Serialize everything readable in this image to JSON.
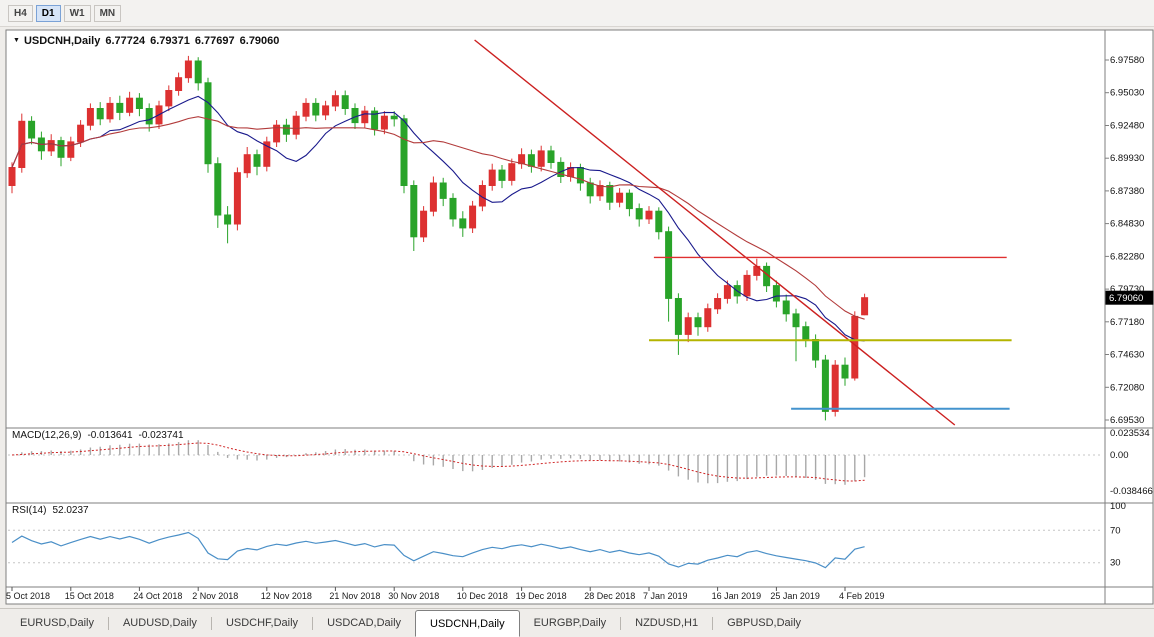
{
  "toolbar": {
    "timeframes": [
      {
        "label": "H4",
        "active": false
      },
      {
        "label": "D1",
        "active": true
      },
      {
        "label": "W1",
        "active": false
      },
      {
        "label": "MN",
        "active": false
      }
    ]
  },
  "chart": {
    "collapse_marker": "▼",
    "symbol_label": "USDCNH,Daily",
    "ohlc": {
      "open": "6.77724",
      "high": "6.79371",
      "low": "6.77697",
      "close": "6.79060"
    }
  },
  "chart_data": {
    "type": "candlestick",
    "symbol": "USDCNH",
    "timeframe": "Daily",
    "current_price": "6.79060",
    "grid": false,
    "colors": {
      "bull": "#dd3131",
      "bear": "#29a329"
    },
    "price_axis": {
      "labels": [
        "6.97580",
        "6.95030",
        "6.92480",
        "6.89930",
        "6.87380",
        "6.84830",
        "6.82280",
        "6.79730",
        "6.77180",
        "6.74630",
        "6.72080",
        "6.69530"
      ],
      "ylim": [
        6.6899,
        6.9976
      ]
    },
    "x_axis": {
      "labels": [
        "5 Oct 2018",
        "15 Oct 2018",
        "24 Oct 2018",
        "2 Nov 2018",
        "12 Nov 2018",
        "21 Nov 2018",
        "30 Nov 2018",
        "10 Dec 2018",
        "19 Dec 2018",
        "28 Dec 2018",
        "7 Jan 2019",
        "16 Jan 2019",
        "25 Jan 2019",
        "4 Feb 2019"
      ],
      "bars": [
        0,
        6,
        13,
        19,
        26,
        33,
        39,
        46,
        52,
        59,
        65,
        72,
        78,
        85
      ]
    },
    "candles": [
      [
        6.878,
        6.896,
        6.872,
        6.892
      ],
      [
        6.892,
        6.934,
        6.888,
        6.928
      ],
      [
        6.928,
        6.932,
        6.91,
        6.915
      ],
      [
        6.915,
        6.92,
        6.898,
        6.905
      ],
      [
        6.905,
        6.918,
        6.901,
        6.913
      ],
      [
        6.913,
        6.916,
        6.893,
        6.9
      ],
      [
        6.9,
        6.916,
        6.897,
        6.912
      ],
      [
        6.912,
        6.929,
        6.908,
        6.925
      ],
      [
        6.925,
        6.942,
        6.921,
        6.938
      ],
      [
        6.938,
        6.943,
        6.925,
        6.93
      ],
      [
        6.93,
        6.947,
        6.927,
        6.942
      ],
      [
        6.942,
        6.948,
        6.929,
        6.935
      ],
      [
        6.935,
        6.951,
        6.932,
        6.946
      ],
      [
        6.946,
        6.95,
        6.932,
        6.938
      ],
      [
        6.938,
        6.942,
        6.92,
        6.926
      ],
      [
        6.926,
        6.944,
        6.922,
        6.94
      ],
      [
        6.94,
        6.956,
        6.936,
        6.952
      ],
      [
        6.952,
        6.966,
        6.948,
        6.962
      ],
      [
        6.962,
        6.979,
        6.958,
        6.975
      ],
      [
        6.975,
        6.978,
        6.952,
        6.958
      ],
      [
        6.958,
        6.962,
        6.888,
        6.895
      ],
      [
        6.895,
        6.9,
        6.845,
        6.855
      ],
      [
        6.855,
        6.862,
        6.833,
        6.848
      ],
      [
        6.848,
        6.892,
        6.843,
        6.888
      ],
      [
        6.888,
        6.908,
        6.884,
        6.902
      ],
      [
        6.902,
        6.906,
        6.886,
        6.893
      ],
      [
        6.893,
        6.916,
        6.889,
        6.912
      ],
      [
        6.912,
        6.929,
        6.908,
        6.925
      ],
      [
        6.925,
        6.93,
        6.912,
        6.918
      ],
      [
        6.918,
        6.936,
        6.914,
        6.932
      ],
      [
        6.932,
        6.946,
        6.928,
        6.942
      ],
      [
        6.942,
        6.946,
        6.928,
        6.933
      ],
      [
        6.933,
        6.944,
        6.929,
        6.94
      ],
      [
        6.94,
        6.952,
        6.936,
        6.948
      ],
      [
        6.948,
        6.952,
        6.933,
        6.938
      ],
      [
        6.938,
        6.942,
        6.922,
        6.927
      ],
      [
        6.927,
        6.94,
        6.923,
        6.936
      ],
      [
        6.936,
        6.939,
        6.917,
        6.922
      ],
      [
        6.922,
        6.936,
        6.918,
        6.932
      ],
      [
        6.932,
        6.936,
        6.924,
        6.93
      ],
      [
        6.93,
        6.933,
        6.872,
        6.878
      ],
      [
        6.878,
        6.882,
        6.827,
        6.838
      ],
      [
        6.838,
        6.862,
        6.834,
        6.858
      ],
      [
        6.858,
        6.885,
        6.854,
        6.88
      ],
      [
        6.88,
        6.884,
        6.862,
        6.868
      ],
      [
        6.868,
        6.872,
        6.846,
        6.852
      ],
      [
        6.852,
        6.858,
        6.838,
        6.845
      ],
      [
        6.845,
        6.866,
        6.841,
        6.862
      ],
      [
        6.862,
        6.882,
        6.858,
        6.878
      ],
      [
        6.878,
        6.895,
        6.874,
        6.89
      ],
      [
        6.89,
        6.894,
        6.876,
        6.882
      ],
      [
        6.882,
        6.899,
        6.878,
        6.895
      ],
      [
        6.895,
        6.907,
        6.891,
        6.902
      ],
      [
        6.902,
        6.906,
        6.888,
        6.893
      ],
      [
        6.893,
        6.909,
        6.889,
        6.905
      ],
      [
        6.905,
        6.909,
        6.891,
        6.896
      ],
      [
        6.896,
        6.9,
        6.88,
        6.885
      ],
      [
        6.885,
        6.896,
        6.881,
        6.892
      ],
      [
        6.892,
        6.895,
        6.874,
        6.88
      ],
      [
        6.88,
        6.884,
        6.864,
        6.87
      ],
      [
        6.87,
        6.882,
        6.866,
        6.878
      ],
      [
        6.878,
        6.881,
        6.859,
        6.865
      ],
      [
        6.865,
        6.876,
        6.861,
        6.872
      ],
      [
        6.872,
        6.875,
        6.854,
        6.86
      ],
      [
        6.86,
        6.864,
        6.846,
        6.852
      ],
      [
        6.852,
        6.862,
        6.848,
        6.858
      ],
      [
        6.858,
        6.861,
        6.836,
        6.842
      ],
      [
        6.842,
        6.846,
        6.772,
        6.79
      ],
      [
        6.79,
        6.794,
        6.746,
        6.762
      ],
      [
        6.762,
        6.779,
        6.756,
        6.775
      ],
      [
        6.775,
        6.779,
        6.761,
        6.768
      ],
      [
        6.768,
        6.786,
        6.764,
        6.782
      ],
      [
        6.782,
        6.794,
        6.778,
        6.79
      ],
      [
        6.79,
        6.804,
        6.786,
        6.8
      ],
      [
        6.8,
        6.804,
        6.786,
        6.792
      ],
      [
        6.792,
        6.812,
        6.788,
        6.808
      ],
      [
        6.808,
        6.821,
        6.804,
        6.815
      ],
      [
        6.815,
        6.818,
        6.795,
        6.8
      ],
      [
        6.8,
        6.804,
        6.783,
        6.788
      ],
      [
        6.788,
        6.793,
        6.772,
        6.778
      ],
      [
        6.778,
        6.782,
        6.741,
        6.768
      ],
      [
        6.768,
        6.772,
        6.752,
        6.758
      ],
      [
        6.758,
        6.762,
        6.736,
        6.742
      ],
      [
        6.742,
        6.746,
        6.695,
        6.702
      ],
      [
        6.702,
        6.742,
        6.698,
        6.738
      ],
      [
        6.738,
        6.744,
        6.722,
        6.728
      ],
      [
        6.728,
        6.78,
        6.726,
        6.776
      ],
      [
        6.77724,
        6.79371,
        6.77697,
        6.7906
      ]
    ],
    "overlays": {
      "moving_averages": [
        {
          "period": 10,
          "color": "#1a1a8c"
        },
        {
          "period": 21,
          "color": "#b23b3b"
        }
      ],
      "trendline": {
        "from_bar": 47.2,
        "from_price": 6.9914,
        "to_bar": 96.2,
        "to_price": 6.6914,
        "color": "#cc2020"
      },
      "hlines": [
        {
          "name": "hline-resistance-red",
          "price": 6.822,
          "from_bar": 65.5,
          "to_bar": 101.5,
          "color": "#e03030",
          "width": 1.4
        },
        {
          "name": "hline-support-yellow",
          "price": 6.7575,
          "from_bar": 65.0,
          "to_bar": 102.0,
          "color": "#b4b400",
          "width": 2
        },
        {
          "name": "hline-support-blue",
          "price": 6.704,
          "from_bar": 79.5,
          "to_bar": 101.8,
          "color": "#4393ce",
          "width": 2
        }
      ]
    },
    "indicators": {
      "macd": {
        "label": "MACD(12,26,9)",
        "main_value": "-0.013641",
        "signal_value": "-0.023741",
        "params": [
          12,
          26,
          9
        ],
        "range": [
          -0.038466,
          0.023534
        ],
        "axis_labels": [
          "0.023534",
          "0.00",
          "-0.038466"
        ],
        "histogram_color": "#a8a8a8",
        "signal_color": "#cf2525"
      },
      "rsi": {
        "label": "RSI(14)",
        "value": "52.0237",
        "period": 14,
        "levels": [
          70,
          30
        ],
        "axis_labels": [
          "100",
          "70",
          "30"
        ],
        "range": [
          0,
          100
        ],
        "line_color": "#4a8fc7"
      }
    }
  },
  "tabs": [
    {
      "label": "EURUSD,Daily",
      "active": false
    },
    {
      "label": "AUDUSD,Daily",
      "active": false
    },
    {
      "label": "USDCHF,Daily",
      "active": false
    },
    {
      "label": "USDCAD,Daily",
      "active": false
    },
    {
      "label": "USDCNH,Daily",
      "active": true
    },
    {
      "label": "EURGBP,Daily",
      "active": false
    },
    {
      "label": "NZDUSD,H1",
      "active": false
    },
    {
      "label": "GBPUSD,Daily",
      "active": false
    }
  ]
}
